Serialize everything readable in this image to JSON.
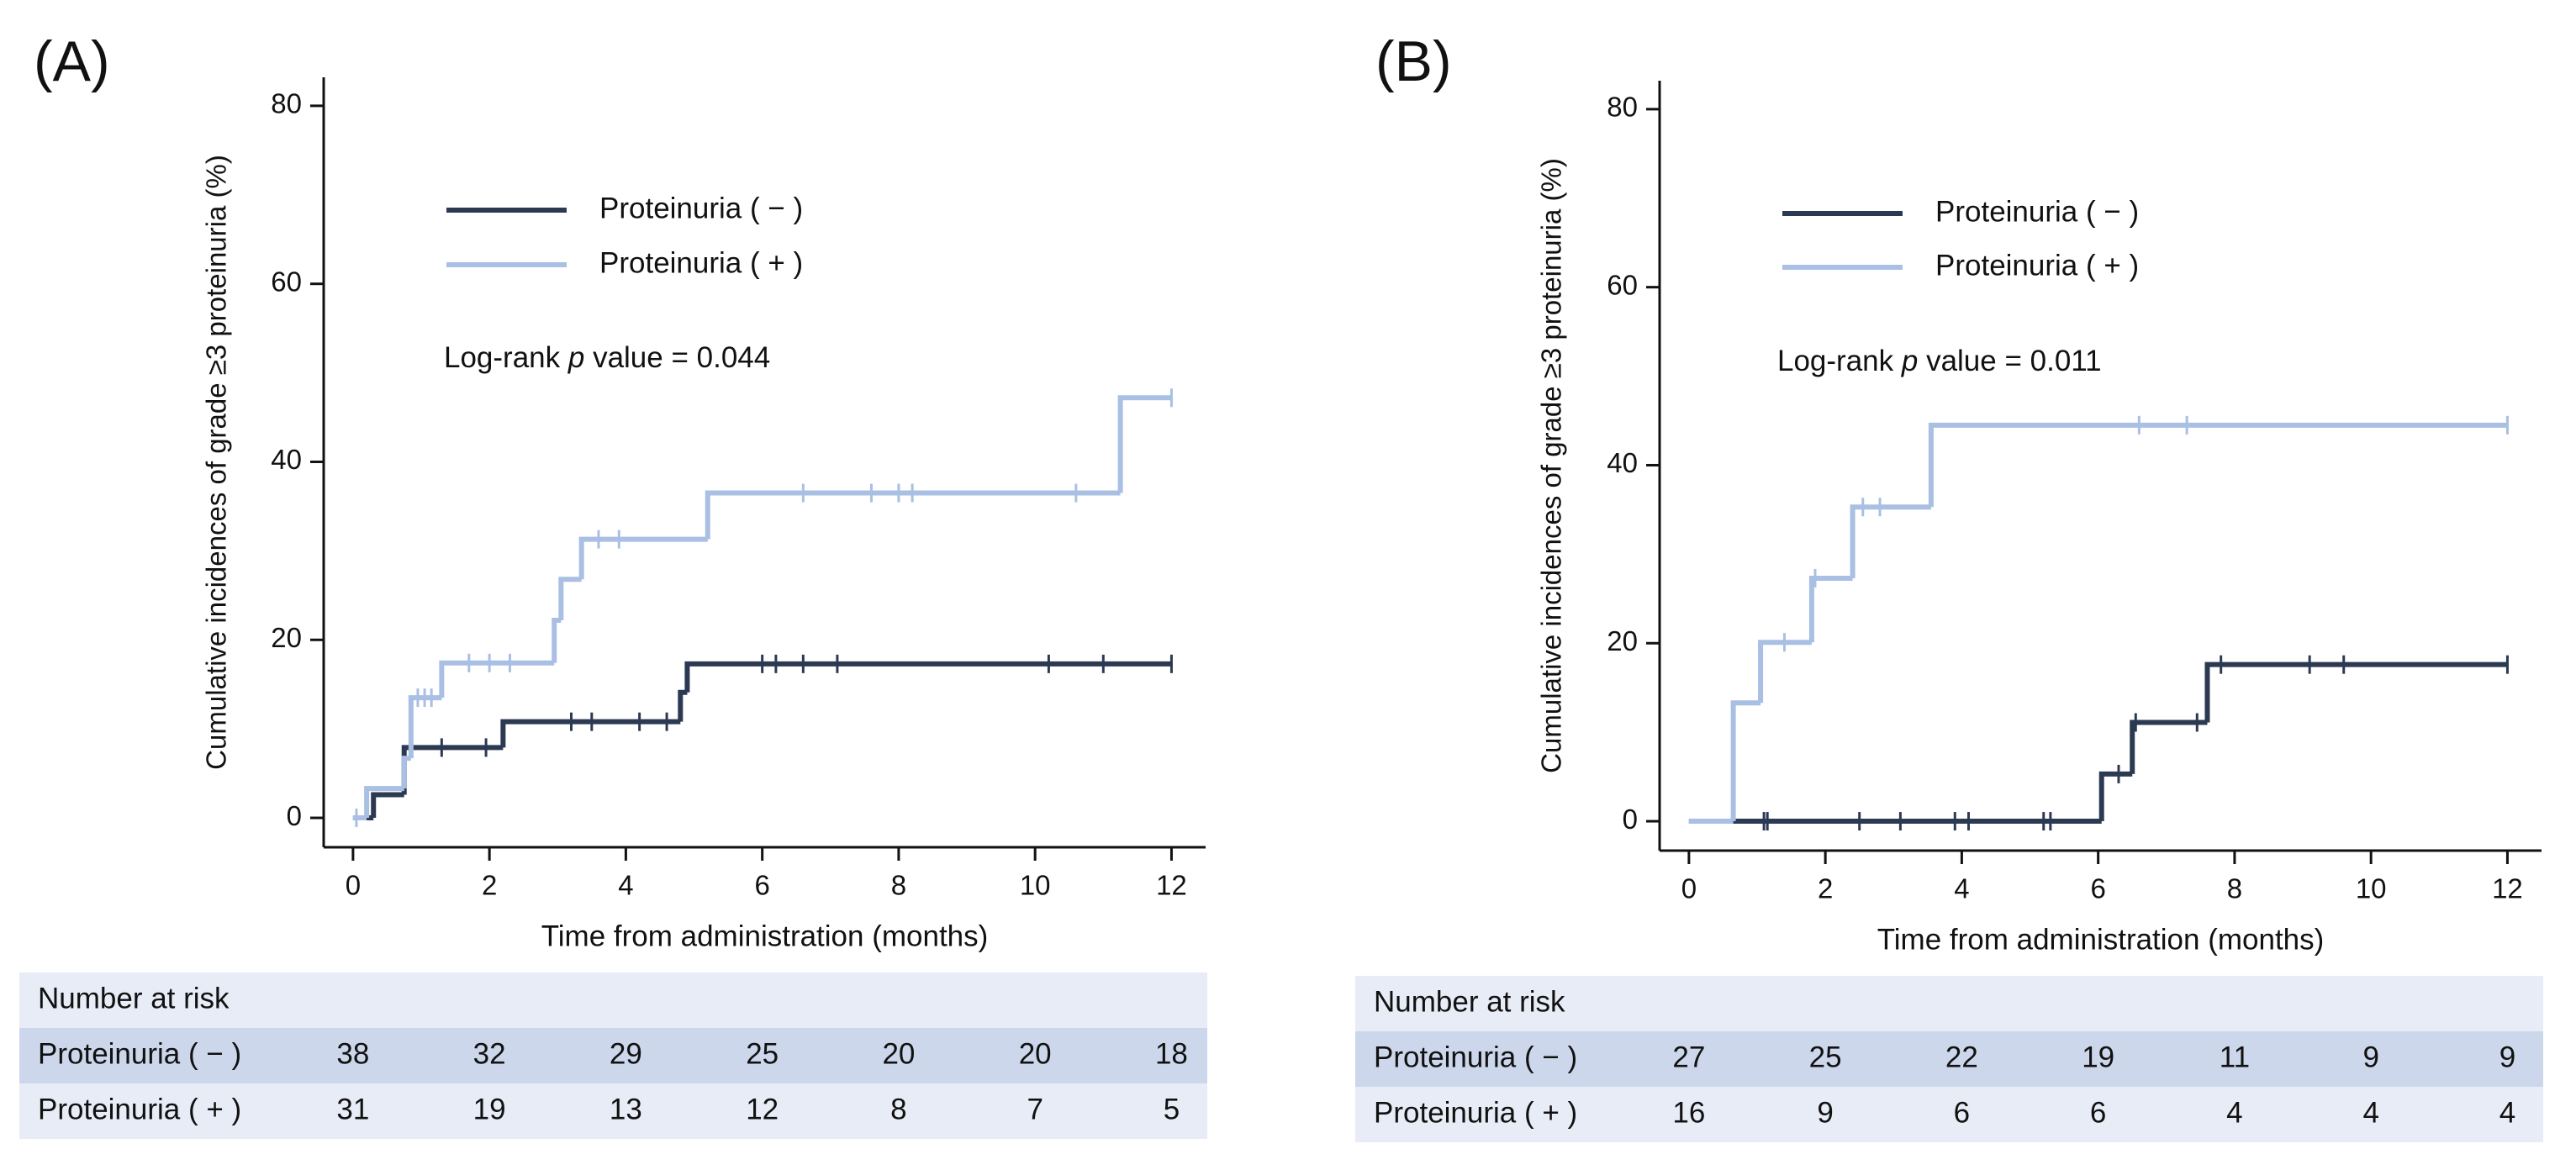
{
  "chart_data": [
    {
      "type": "step",
      "panel_label": "(A)",
      "ylabel": "Cumulative incidences of grade ≥3 proteinuria (%)",
      "xlabel": "Time from administration (months)",
      "annotation": [
        "Log-rank ",
        "p",
        " value = 0.044"
      ],
      "xlim": [
        -0.43,
        12.5
      ],
      "xticks": [
        0,
        2,
        4,
        6,
        8,
        10,
        12
      ],
      "ylim": [
        -3.3,
        83.2
      ],
      "yticks": [
        0,
        20,
        40,
        60,
        80
      ],
      "series": [
        {
          "name": "Proteinuria ( − )",
          "color": "#2b3a52",
          "x": [
            0,
            0.3,
            0.75,
            2.2,
            4.8,
            4.9,
            12
          ],
          "values": [
            0,
            2.6,
            7.9,
            10.8,
            14.1,
            17.3,
            17.3
          ],
          "censor_x": [
            1.3,
            1.95,
            3.2,
            3.5,
            4.2,
            4.6,
            6.0,
            6.2,
            6.6,
            7.1,
            10.2,
            11.0,
            12.0
          ],
          "censor_values": [
            7.9,
            7.9,
            10.8,
            10.8,
            10.8,
            10.8,
            17.3,
            17.3,
            17.3,
            17.3,
            17.3,
            17.3,
            17.3
          ]
        },
        {
          "name": "Proteinuria ( + )",
          "color": "#a9bfe3",
          "x": [
            0,
            0.2,
            0.75,
            0.85,
            1.3,
            2.95,
            3.05,
            3.35,
            5.2,
            11.25,
            12
          ],
          "values": [
            0,
            3.3,
            6.7,
            13.5,
            17.4,
            22.2,
            26.8,
            31.3,
            36.5,
            47.2,
            47.2
          ],
          "censor_x": [
            0.05,
            0.95,
            1.05,
            1.15,
            1.7,
            2.0,
            2.3,
            3.6,
            3.9,
            6.6,
            7.6,
            8.0,
            8.2,
            10.6,
            12.0
          ],
          "censor_values": [
            0,
            13.5,
            13.5,
            13.5,
            17.4,
            17.4,
            17.4,
            31.3,
            31.3,
            36.5,
            36.5,
            36.5,
            36.5,
            36.5,
            47.2
          ]
        }
      ],
      "risk_table": {
        "title": "Number at risk",
        "rows": [
          {
            "label": "Proteinuria ( − )",
            "values": [
              38,
              32,
              29,
              25,
              20,
              20,
              18
            ]
          },
          {
            "label": "Proteinuria ( + )",
            "values": [
              31,
              19,
              13,
              12,
              8,
              7,
              5
            ]
          }
        ]
      }
    },
    {
      "type": "step",
      "panel_label": "(B)",
      "ylabel": "Cumulative incidences of grade ≥3 proteinuria (%)",
      "xlabel": "Time from administration (months)",
      "annotation": [
        "Log-rank ",
        "p",
        " value = 0.011"
      ],
      "xlim": [
        -0.43,
        12.5
      ],
      "xticks": [
        0,
        2,
        4,
        6,
        8,
        10,
        12
      ],
      "ylim": [
        -3.3,
        83.2
      ],
      "yticks": [
        0,
        20,
        40,
        60,
        80
      ],
      "series": [
        {
          "name": "Proteinuria ( − )",
          "color": "#2b3a52",
          "x": [
            0,
            6.05,
            6.5,
            7.6,
            12
          ],
          "values": [
            0,
            5.3,
            11.1,
            17.6,
            17.6
          ],
          "censor_x": [
            1.1,
            1.15,
            2.5,
            3.1,
            3.9,
            4.1,
            5.2,
            5.3,
            6.3,
            6.55,
            7.45,
            7.8,
            9.1,
            9.6,
            12.0
          ],
          "censor_values": [
            0,
            0,
            0,
            0,
            0,
            0,
            0,
            0,
            5.3,
            11.1,
            11.1,
            17.6,
            17.6,
            17.6,
            17.6
          ]
        },
        {
          "name": "Proteinuria ( + )",
          "color": "#a9bfe3",
          "x": [
            0,
            0.65,
            1.05,
            1.8,
            2.4,
            3.55,
            12
          ],
          "values": [
            0,
            13.3,
            20.1,
            27.3,
            35.3,
            44.5,
            44.5
          ],
          "censor_x": [
            1.4,
            1.85,
            2.55,
            2.8,
            6.6,
            7.3,
            12.0
          ],
          "censor_values": [
            20.1,
            27.3,
            35.3,
            35.3,
            44.5,
            44.5,
            44.5
          ]
        }
      ],
      "risk_table": {
        "title": "Number at risk",
        "rows": [
          {
            "label": "Proteinuria ( − )",
            "values": [
              27,
              25,
              22,
              19,
              11,
              9,
              9
            ]
          },
          {
            "label": "Proteinuria ( + )",
            "values": [
              16,
              9,
              6,
              6,
              4,
              4,
              4
            ]
          }
        ]
      }
    }
  ]
}
